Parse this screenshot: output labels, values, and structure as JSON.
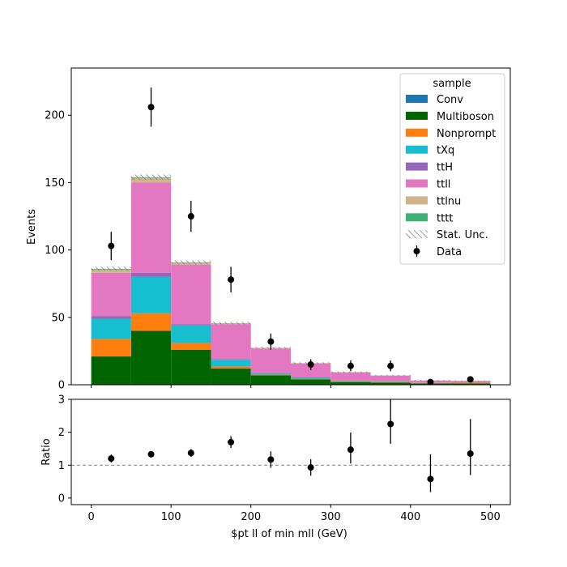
{
  "chart_data": [
    {
      "type": "bar",
      "stacked": true,
      "ylabel": "Events",
      "xlim": [
        -25,
        525
      ],
      "ylim": [
        0,
        235
      ],
      "yticks": [
        0,
        50,
        100,
        150,
        200
      ],
      "bin_edges": [
        0,
        50,
        100,
        150,
        200,
        250,
        300,
        350,
        400,
        450,
        500
      ],
      "series": [
        {
          "name": "Multiboson",
          "color": "#006400",
          "values": [
            21,
            40,
            26,
            12,
            7,
            4,
            2,
            1.5,
            1,
            1
          ]
        },
        {
          "name": "Nonprompt",
          "color": "#ff7f0e",
          "values": [
            13,
            13,
            5,
            1.5,
            0.5,
            0.5,
            0.5,
            0.5,
            0.3,
            0.5
          ]
        },
        {
          "name": "tXq",
          "color": "#17becf",
          "values": [
            15,
            27,
            13,
            5,
            1,
            1,
            0.5,
            0.5,
            0.2,
            0.2
          ]
        },
        {
          "name": "ttH",
          "color": "#9467bd",
          "values": [
            2,
            3,
            1,
            0.5,
            0.3,
            0.2,
            0.1,
            0.1,
            0.1,
            0.1
          ]
        },
        {
          "name": "ttll",
          "color": "#e377c2",
          "values": [
            32,
            67,
            44,
            26,
            18,
            10,
            6,
            4,
            1.5,
            1
          ]
        },
        {
          "name": "ttlnu",
          "color": "#d2b48c",
          "values": [
            2.5,
            3.5,
            1.5,
            0.5,
            0.5,
            0.3,
            0.2,
            0.2,
            0.1,
            0.1
          ]
        },
        {
          "name": "tttt",
          "color": "#3cb371",
          "values": [
            0.5,
            0.5,
            0.3,
            0.2,
            0.1,
            0.1,
            0.1,
            0.1,
            0.05,
            0.05
          ]
        }
      ],
      "stat_unc": [
        1.5,
        2,
        1.5,
        1,
        0.7,
        0.6,
        0.5,
        0.4,
        0.3,
        0.3
      ],
      "data": {
        "name": "Data",
        "x": [
          25,
          75,
          125,
          175,
          225,
          275,
          325,
          375,
          425,
          475
        ],
        "y": [
          103,
          206,
          125,
          78,
          32,
          15,
          14,
          14,
          2,
          4
        ],
        "yerr": [
          10.5,
          14.5,
          11.5,
          9.5,
          6,
          4,
          4,
          4,
          1.5,
          2
        ]
      },
      "legend": {
        "title": "sample",
        "placement": "upper right",
        "entries": [
          "Conv",
          "Multiboson",
          "Nonprompt",
          "tXq",
          "ttH",
          "ttll",
          "ttlnu",
          "tttt",
          "Stat. Unc.",
          "Data"
        ],
        "colors": [
          "#1f77b4",
          "#006400",
          "#ff7f0e",
          "#17becf",
          "#9467bd",
          "#e377c2",
          "#d2b48c",
          "#3cb371",
          "#888888",
          "#000000"
        ]
      }
    },
    {
      "type": "scatter",
      "xlabel": "$pt ll of min mll (GeV)",
      "ylabel": "Ratio",
      "xlim": [
        -25,
        525
      ],
      "ylim": [
        -0.2,
        3
      ],
      "yticks": [
        0,
        1,
        2,
        3
      ],
      "xticks": [
        0,
        100,
        200,
        300,
        400,
        500
      ],
      "reference_line": 1,
      "x": [
        25,
        75,
        125,
        175,
        225,
        275,
        325,
        375,
        425,
        475
      ],
      "y": [
        1.2,
        1.33,
        1.37,
        1.7,
        1.17,
        0.93,
        1.47,
        2.25,
        0.58,
        1.35
      ],
      "yerr_low": [
        0.12,
        0.08,
        0.12,
        0.18,
        0.25,
        0.25,
        0.42,
        0.6,
        0.4,
        0.65
      ],
      "yerr_high": [
        0.12,
        0.08,
        0.12,
        0.18,
        0.25,
        0.25,
        0.52,
        0.75,
        0.75,
        1.05
      ]
    }
  ]
}
